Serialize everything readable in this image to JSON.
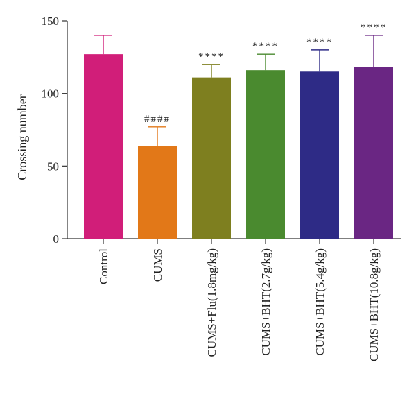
{
  "chart_data": {
    "type": "bar",
    "title": "",
    "xlabel": "",
    "ylabel": "Crossing number",
    "ylim": [
      0,
      150
    ],
    "yticks": [
      0,
      50,
      100,
      150
    ],
    "grid": false,
    "categories": [
      "Control",
      "CUMS",
      "CUMS+Flu(1.8mg/kg)",
      "CUMS+BHT(2.7g/kg)",
      "CUMS+BHT(5.4g/kg)",
      "CUMS+BHT(10.8g/kg)"
    ],
    "values": [
      127,
      64,
      111,
      116,
      115,
      118
    ],
    "error_upper": [
      13,
      13,
      9,
      11,
      15,
      22
    ],
    "annotations": [
      "",
      "####",
      "****",
      "****",
      "****",
      "****"
    ],
    "colors": [
      "#D11E79",
      "#E27818",
      "#7E7F1F",
      "#4A8A2F",
      "#2E2B86",
      "#6A2683"
    ]
  }
}
